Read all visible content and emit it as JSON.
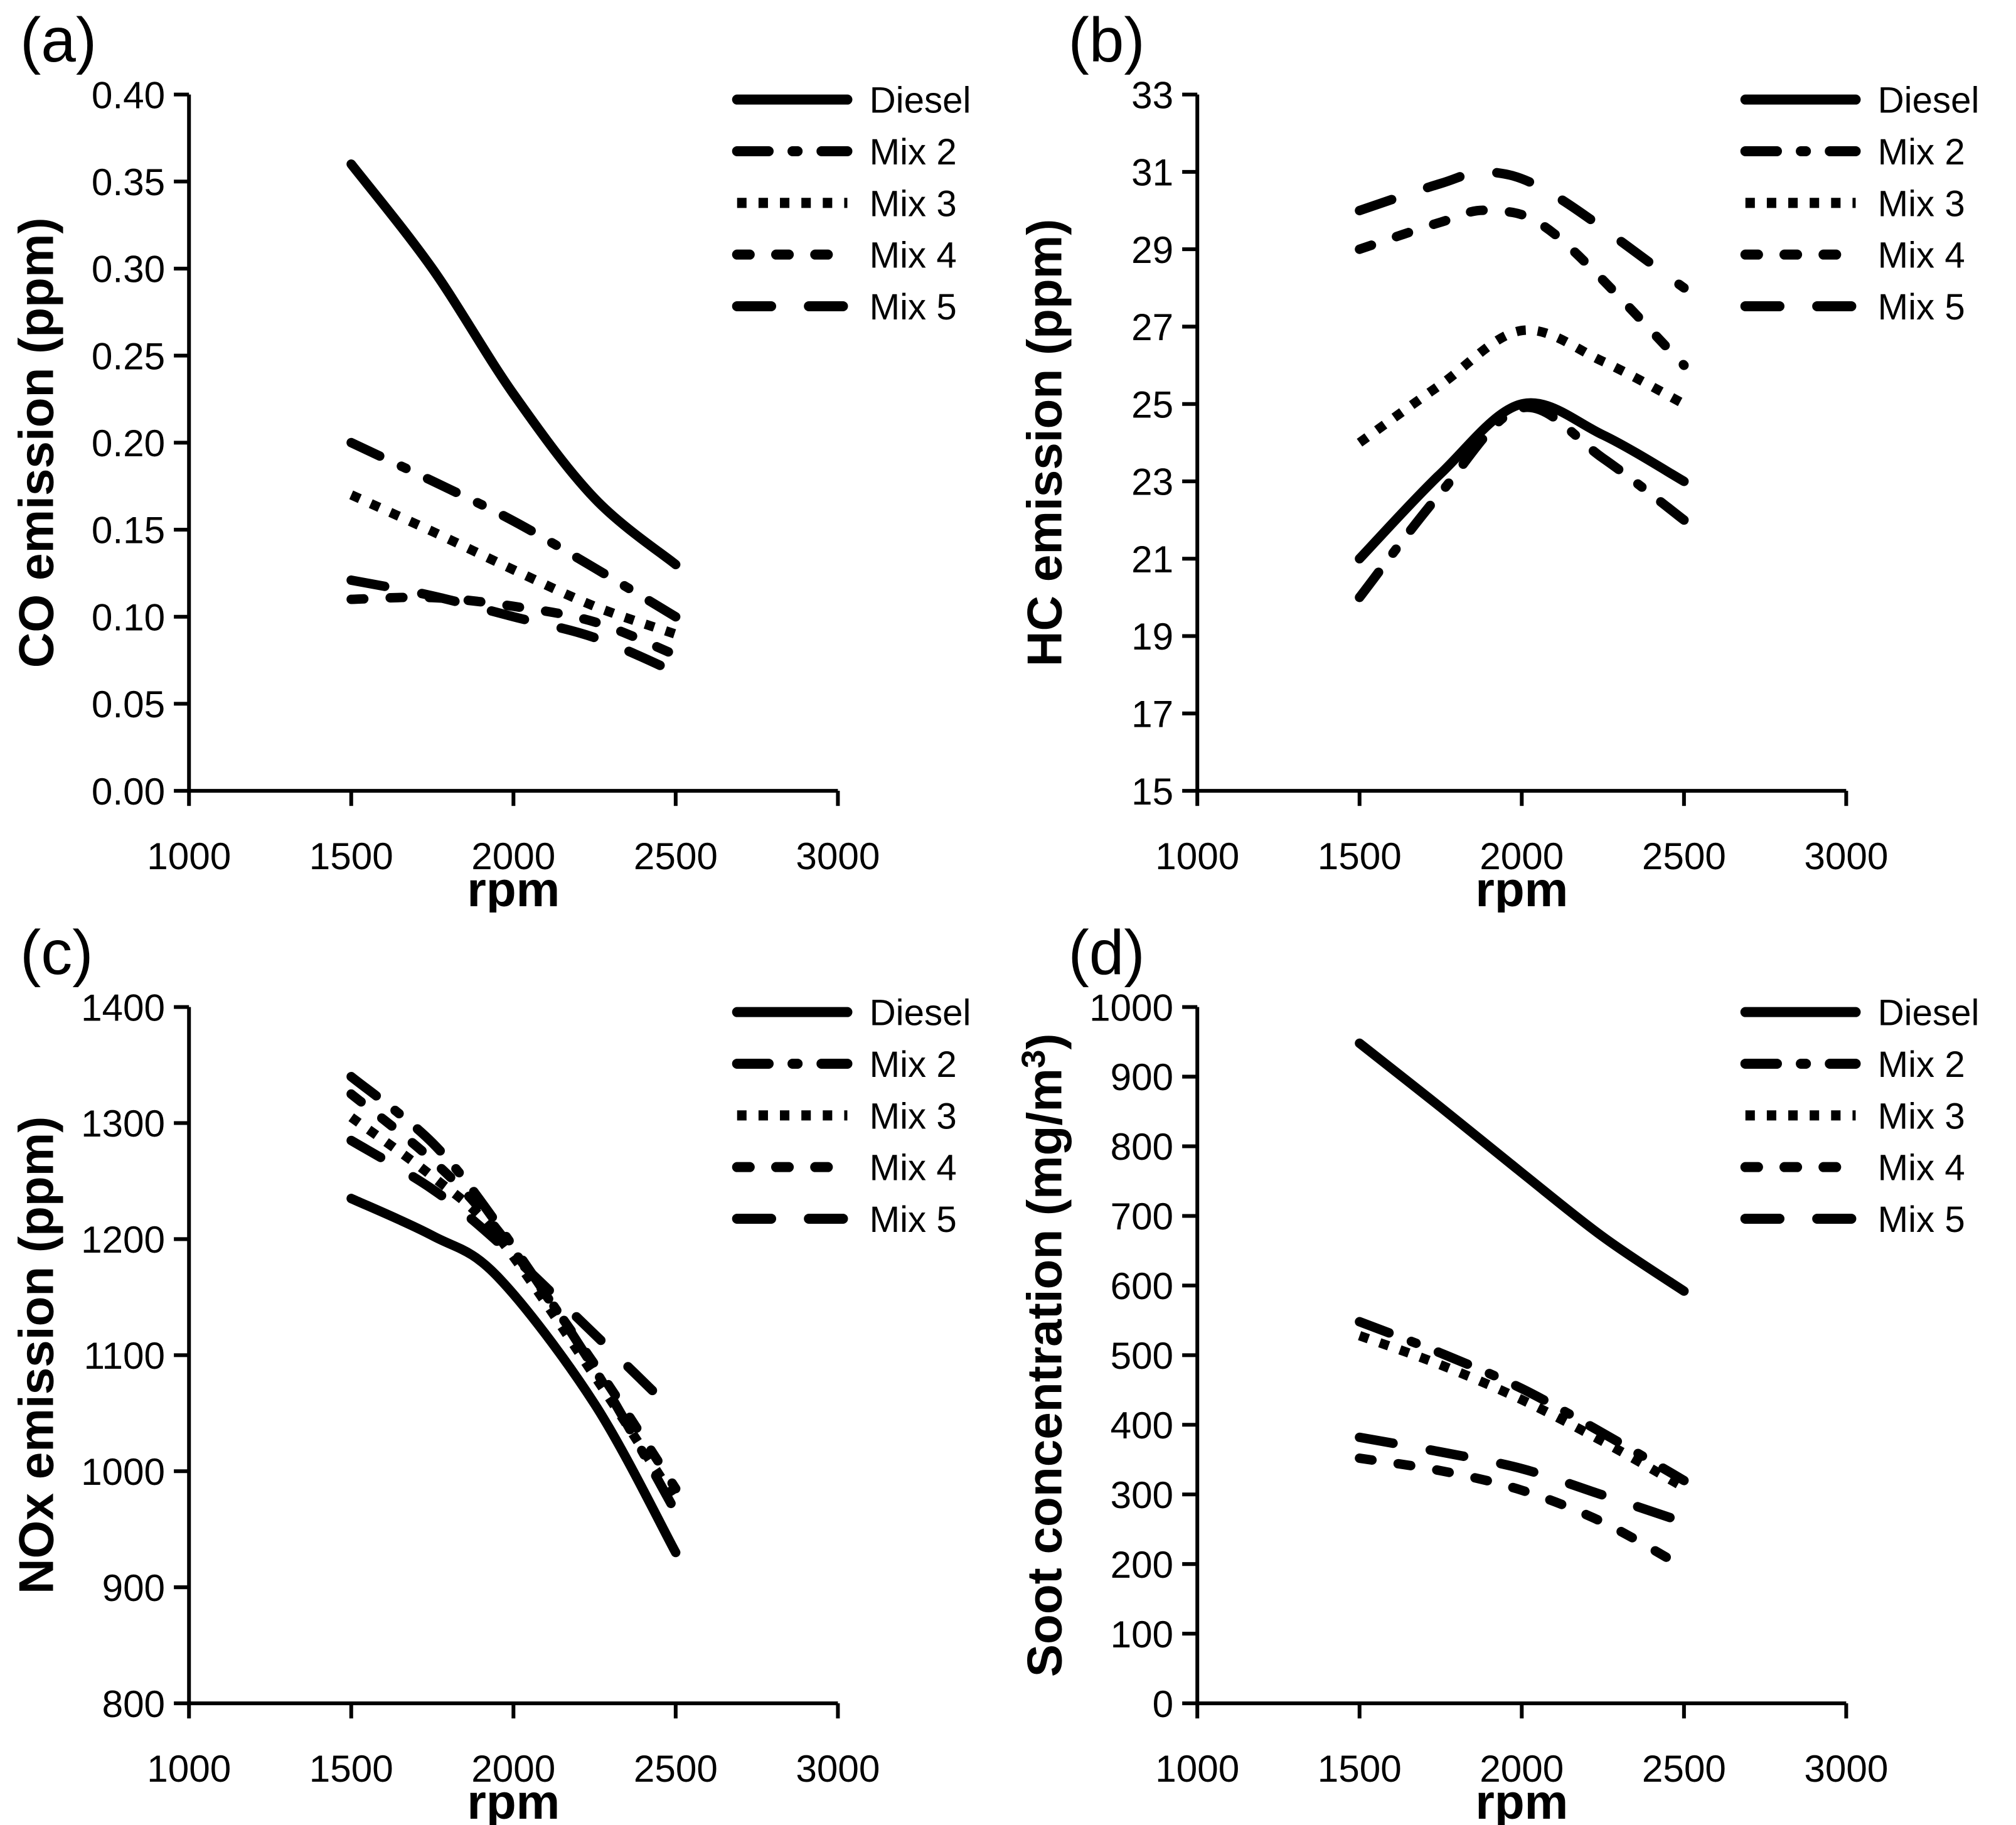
{
  "figure": {
    "background": "#ffffff",
    "line_color": "#000000",
    "panel_letters": [
      "(a)",
      "(b)",
      "(c)",
      "(d)"
    ]
  },
  "legend": {
    "position": "top-right",
    "entries": [
      {
        "label": "Diesel",
        "dash": "solid"
      },
      {
        "label": "Mix 2",
        "dash": "dashdot"
      },
      {
        "label": "Mix 3",
        "dash": "dot"
      },
      {
        "label": "Mix 4",
        "dash": "shortdash"
      },
      {
        "label": "Mix 5",
        "dash": "longdash"
      }
    ]
  },
  "dash_patterns": {
    "solid": {
      "pattern": "",
      "cap": "round"
    },
    "dashdot": {
      "pattern": "50 38 8 38",
      "cap": "round"
    },
    "dot": {
      "pattern": "15 19",
      "cap": "butt"
    },
    "shortdash": {
      "pattern": "20 42",
      "cap": "round"
    },
    "longdash": {
      "pattern": "54 60",
      "cap": "round"
    }
  },
  "chart_data": [
    {
      "type": "line",
      "panel_label": "(a)",
      "title": "",
      "xlabel": "rpm",
      "ylabel": "CO emission (ppm)",
      "xlim": [
        1000,
        3000
      ],
      "ylim": [
        0,
        0.4
      ],
      "grid": false,
      "legend_position": "top-right",
      "xticks": {
        "values": [
          1000,
          1500,
          2000,
          2500,
          3000
        ],
        "labels": [
          "1000",
          "1500",
          "2000",
          "2500",
          "3000"
        ]
      },
      "yticks": {
        "values": [
          0,
          0.05,
          0.1,
          0.15,
          0.2,
          0.25,
          0.3,
          0.35,
          0.4
        ],
        "labels": [
          "0.00",
          "0.05",
          "0.10",
          "0.15",
          "0.20",
          "0.25",
          "0.30",
          "0.35",
          "0.40"
        ]
      },
      "x": [
        1500,
        1750,
        2000,
        2250,
        2500
      ],
      "series": [
        {
          "name": "Diesel",
          "dash": "solid",
          "y": [
            0.36,
            0.3,
            0.228,
            0.168,
            0.13
          ]
        },
        {
          "name": "Mix 2",
          "dash": "dashdot",
          "y": [
            0.2,
            0.178,
            0.155,
            0.128,
            0.1
          ]
        },
        {
          "name": "Mix 3",
          "dash": "dot",
          "y": [
            0.17,
            0.149,
            0.127,
            0.106,
            0.09
          ]
        },
        {
          "name": "Mix 4",
          "dash": "shortdash",
          "y": [
            0.11,
            0.111,
            0.106,
            0.097,
            0.078
          ]
        },
        {
          "name": "Mix 5",
          "dash": "longdash",
          "y": [
            0.121,
            0.112,
            0.1,
            0.088,
            0.068
          ]
        }
      ]
    },
    {
      "type": "line",
      "panel_label": "(b)",
      "title": "",
      "xlabel": "rpm",
      "ylabel": "HC emission (ppm)",
      "xlim": [
        1000,
        3000
      ],
      "ylim": [
        15,
        33
      ],
      "grid": false,
      "legend_position": "top-right",
      "xticks": {
        "values": [
          1000,
          1500,
          2000,
          2500,
          3000
        ],
        "labels": [
          "1000",
          "1500",
          "2000",
          "2500",
          "3000"
        ]
      },
      "yticks": {
        "values": [
          15,
          17,
          19,
          21,
          23,
          25,
          27,
          29,
          31,
          33
        ],
        "labels": [
          "15",
          "17",
          "19",
          "21",
          "23",
          "25",
          "27",
          "29",
          "31",
          "33"
        ]
      },
      "x": [
        1500,
        1750,
        2000,
        2250,
        2500
      ],
      "series": [
        {
          "name": "Diesel",
          "dash": "solid",
          "y": [
            21,
            23.2,
            25,
            24.2,
            23
          ]
        },
        {
          "name": "Mix 2",
          "dash": "dashdot",
          "y": [
            20,
            22.7,
            24.9,
            23.6,
            22
          ]
        },
        {
          "name": "Mix 3",
          "dash": "dot",
          "y": [
            24,
            25.5,
            26.9,
            26.1,
            25
          ]
        },
        {
          "name": "Mix 4",
          "dash": "shortdash",
          "x": [
            1500,
            1750,
            1900,
            2100,
            2500
          ],
          "y": [
            29,
            29.7,
            30,
            29.4,
            26
          ]
        },
        {
          "name": "Mix 5",
          "dash": "longdash",
          "x": [
            1500,
            1750,
            1900,
            2100,
            2500
          ],
          "y": [
            30,
            30.7,
            31,
            30.4,
            28
          ]
        }
      ]
    },
    {
      "type": "line",
      "panel_label": "(c)",
      "title": "",
      "xlabel": "rpm",
      "ylabel": "NOx emission (ppm)",
      "xlim": [
        1000,
        3000
      ],
      "ylim": [
        800,
        1400
      ],
      "grid": false,
      "legend_position": "top-right",
      "xticks": {
        "values": [
          1000,
          1500,
          2000,
          2500,
          3000
        ],
        "labels": [
          "1000",
          "1500",
          "2000",
          "2500",
          "3000"
        ]
      },
      "yticks": {
        "values": [
          800,
          900,
          1000,
          1100,
          1200,
          1300,
          1400
        ],
        "labels": [
          "800",
          "900",
          "1000",
          "1100",
          "1200",
          "1300",
          "1400"
        ]
      },
      "x": [
        1500,
        1750,
        1950,
        2250,
        2500
      ],
      "series": [
        {
          "name": "Diesel",
          "dash": "solid",
          "y": [
            1235,
            1203,
            1168,
            1058,
            930
          ]
        },
        {
          "name": "Mix 2",
          "dash": "dashdot",
          "y": [
            1340,
            1283,
            1213,
            1088,
            965
          ]
        },
        {
          "name": "Mix 3",
          "dash": "dot",
          "y": [
            1305,
            1254,
            1203,
            1082,
            975
          ]
        },
        {
          "name": "Mix 4",
          "dash": "shortdash",
          "y": [
            1325,
            1268,
            1208,
            1092,
            985
          ]
        },
        {
          "name": "Mix 5",
          "dash": "longdash",
          "y": [
            1285,
            1243,
            1198,
            1118,
            1050
          ]
        }
      ]
    },
    {
      "type": "line",
      "panel_label": "(d)",
      "title": "",
      "xlabel": "rpm",
      "ylabel": "Soot concentration (mg/m³)",
      "xlim": [
        1000,
        3000
      ],
      "ylim": [
        0,
        1000
      ],
      "grid": false,
      "legend_position": "top-right",
      "xticks": {
        "values": [
          1000,
          1500,
          2000,
          2500,
          3000
        ],
        "labels": [
          "1000",
          "1500",
          "2000",
          "2500",
          "3000"
        ]
      },
      "yticks": {
        "values": [
          0,
          100,
          200,
          300,
          400,
          500,
          600,
          700,
          800,
          900,
          1000
        ],
        "labels": [
          "0",
          "100",
          "200",
          "300",
          "400",
          "500",
          "600",
          "700",
          "800",
          "900",
          "1000"
        ]
      },
      "x": [
        1500,
        1750,
        2000,
        2250,
        2500
      ],
      "series": [
        {
          "name": "Diesel",
          "dash": "solid",
          "y": [
            948,
            856,
            762,
            670,
            592
          ]
        },
        {
          "name": "Mix 2",
          "dash": "dashdot",
          "y": [
            548,
            503,
            452,
            388,
            320
          ]
        },
        {
          "name": "Mix 3",
          "dash": "dot",
          "y": [
            528,
            486,
            436,
            376,
            310
          ]
        },
        {
          "name": "Mix 4",
          "dash": "shortdash",
          "y": [
            352,
            334,
            306,
            260,
            195
          ]
        },
        {
          "name": "Mix 5",
          "dash": "longdash",
          "y": [
            382,
            361,
            337,
            299,
            260
          ]
        }
      ]
    }
  ]
}
